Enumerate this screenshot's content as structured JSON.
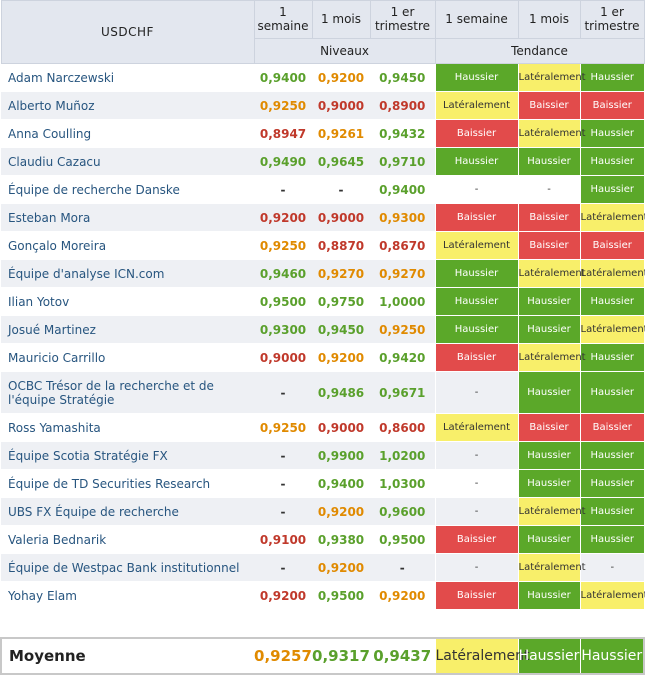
{
  "title": "USDCHF",
  "headers": {
    "w1": "1 semaine",
    "m1": "1 mois",
    "q1": "1 er trimestre",
    "levels": "Niveaux",
    "trend": "Tendance"
  },
  "colors": {
    "green": "#5aa02c",
    "orange": "#e08a00",
    "red": "#c0392b",
    "dash": "#333333",
    "bg_green": "#5ba829",
    "bg_red": "#e24b4b",
    "bg_yellow": "#f8ef6a",
    "bg_none": "#eef0f4"
  },
  "rows": [
    {
      "name": "Adam Narczewski",
      "w1": "0,9400",
      "m1": "0,9200",
      "q1": "0,9450",
      "t1": "Haussier",
      "t2": "Latéralement",
      "t3": "Haussier"
    },
    {
      "name": "Alberto Muñoz",
      "w1": "0,9250",
      "m1": "0,9000",
      "q1": "0,8900",
      "t1": "Latéralement",
      "t2": "Baissier",
      "t3": "Baissier"
    },
    {
      "name": "Anna Coulling",
      "w1": "0,8947",
      "m1": "0,9261",
      "q1": "0,9432",
      "t1": "Baissier",
      "t2": "Latéralement",
      "t3": "Haussier"
    },
    {
      "name": "Claudiu Cazacu",
      "w1": "0,9490",
      "m1": "0,9645",
      "q1": "0,9710",
      "t1": "Haussier",
      "t2": "Haussier",
      "t3": "Haussier"
    },
    {
      "name": "Équipe de recherche Danske",
      "w1": "-",
      "m1": "-",
      "q1": "0,9400",
      "t1": "-",
      "t2": "-",
      "t3": "Haussier"
    },
    {
      "name": "Esteban Mora",
      "w1": "0,9200",
      "m1": "0,9000",
      "q1": "0,9300",
      "t1": "Baissier",
      "t2": "Baissier",
      "t3": "Latéralement"
    },
    {
      "name": "Gonçalo Moreira",
      "w1": "0,9250",
      "m1": "0,8870",
      "q1": "0,8670",
      "t1": "Latéralement",
      "t2": "Baissier",
      "t3": "Baissier"
    },
    {
      "name": "Équipe d'analyse ICN.com",
      "w1": "0,9460",
      "m1": "0,9270",
      "q1": "0,9270",
      "t1": "Haussier",
      "t2": "Latéralement",
      "t3": "Latéralement"
    },
    {
      "name": "Ilian Yotov",
      "w1": "0,9500",
      "m1": "0,9750",
      "q1": "1,0000",
      "t1": "Haussier",
      "t2": "Haussier",
      "t3": "Haussier"
    },
    {
      "name": "Josué Martinez",
      "w1": "0,9300",
      "m1": "0,9450",
      "q1": "0,9250",
      "t1": "Haussier",
      "t2": "Haussier",
      "t3": "Latéralement"
    },
    {
      "name": "Mauricio Carrillo",
      "w1": "0,9000",
      "m1": "0,9200",
      "q1": "0,9420",
      "t1": "Baissier",
      "t2": "Latéralement",
      "t3": "Haussier"
    },
    {
      "name": "OCBC Trésor de la recherche et de l'équipe Stratégie",
      "w1": "-",
      "m1": "0,9486",
      "q1": "0,9671",
      "t1": "-",
      "t2": "Haussier",
      "t3": "Haussier",
      "tall": true
    },
    {
      "name": "Ross Yamashita",
      "w1": "0,9250",
      "m1": "0,9000",
      "q1": "0,8600",
      "t1": "Latéralement",
      "t2": "Baissier",
      "t3": "Baissier"
    },
    {
      "name": "Équipe Scotia Stratégie FX",
      "w1": "-",
      "m1": "0,9900",
      "q1": "1,0200",
      "t1": "-",
      "t2": "Haussier",
      "t3": "Haussier"
    },
    {
      "name": "Équipe de TD Securities Research",
      "w1": "-",
      "m1": "0,9400",
      "q1": "1,0300",
      "t1": "-",
      "t2": "Haussier",
      "t3": "Haussier"
    },
    {
      "name": "UBS FX Équipe de recherche",
      "w1": "-",
      "m1": "0,9200",
      "q1": "0,9600",
      "t1": "-",
      "t2": "Latéralement",
      "t3": "Haussier"
    },
    {
      "name": "Valeria Bednarik",
      "w1": "0,9100",
      "m1": "0,9380",
      "q1": "0,9500",
      "t1": "Baissier",
      "t2": "Haussier",
      "t3": "Haussier"
    },
    {
      "name": "Équipe de Westpac Bank institutionnel",
      "w1": "-",
      "m1": "0,9200",
      "q1": "-",
      "t1": "-",
      "t2": "Latéralement",
      "t3": "-"
    },
    {
      "name": "Yohay Elam",
      "w1": "0,9200",
      "m1": "0,9500",
      "q1": "0,9200",
      "t1": "Baissier",
      "t2": "Haussier",
      "t3": "Latéralement"
    }
  ],
  "average": {
    "label": "Moyenne",
    "w1": "0,9257",
    "m1": "0,9317",
    "q1": "0,9437",
    "t1": "Latéralement",
    "t2": "Haussier",
    "t3": "Haussier"
  }
}
